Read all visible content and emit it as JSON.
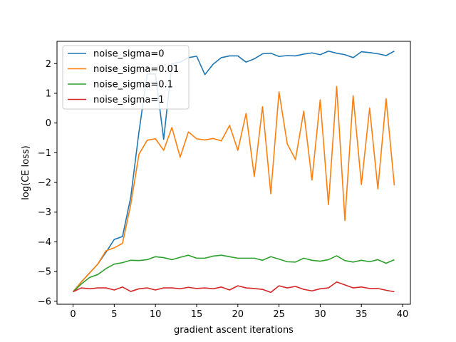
{
  "chart_data": {
    "type": "line",
    "title": "",
    "xlabel": "gradient ascent iterations",
    "ylabel": "log(CE loss)",
    "xlim": [
      -1.95,
      40.95
    ],
    "ylim": [
      -6.1,
      2.75
    ],
    "xticks": [
      0,
      5,
      10,
      15,
      20,
      25,
      30,
      35,
      40
    ],
    "yticks": [
      -6,
      -5,
      -4,
      -3,
      -2,
      -1,
      0,
      1,
      2
    ],
    "grid": false,
    "legend_position": "upper-left",
    "x": [
      0,
      1,
      2,
      3,
      4,
      5,
      6,
      7,
      8,
      9,
      10,
      11,
      12,
      13,
      14,
      15,
      16,
      17,
      18,
      19,
      20,
      21,
      22,
      23,
      24,
      25,
      26,
      27,
      28,
      29,
      30,
      31,
      32,
      33,
      34,
      35,
      36,
      37,
      38,
      39
    ],
    "series": [
      {
        "name": "noise_sigma=0",
        "color": "#1f77b4",
        "values": [
          -5.68,
          -5.35,
          -5.05,
          -4.75,
          -4.35,
          -3.92,
          -3.82,
          -2.5,
          -0.3,
          1.65,
          1.65,
          -0.55,
          2.0,
          2.05,
          2.2,
          2.25,
          1.63,
          1.98,
          2.2,
          2.26,
          2.26,
          2.05,
          2.16,
          2.33,
          2.35,
          2.24,
          2.27,
          2.26,
          2.32,
          2.36,
          2.3,
          2.42,
          2.35,
          2.3,
          2.2,
          2.4,
          2.37,
          2.33,
          2.27,
          2.42
        ]
      },
      {
        "name": "noise_sigma=0.01",
        "color": "#ff7f0e",
        "values": [
          -5.68,
          -5.35,
          -5.05,
          -4.75,
          -4.3,
          -4.2,
          -4.05,
          -2.75,
          -1.05,
          -0.58,
          -0.53,
          -0.92,
          -0.15,
          -1.15,
          -0.3,
          -0.53,
          -0.57,
          -0.52,
          -0.6,
          -0.08,
          -0.92,
          0.32,
          -1.8,
          0.55,
          -2.38,
          1.05,
          -0.7,
          -1.23,
          0.4,
          -1.92,
          0.78,
          -2.75,
          1.23,
          -3.28,
          0.92,
          -2.07,
          0.5,
          -2.22,
          0.82,
          -2.1
        ]
      },
      {
        "name": "noise_sigma=0.1",
        "color": "#2ca02c",
        "values": [
          -5.68,
          -5.42,
          -5.2,
          -5.1,
          -4.9,
          -4.75,
          -4.7,
          -4.62,
          -4.63,
          -4.6,
          -4.5,
          -4.53,
          -4.6,
          -4.52,
          -4.45,
          -4.55,
          -4.55,
          -4.48,
          -4.45,
          -4.5,
          -4.55,
          -4.55,
          -4.55,
          -4.62,
          -4.5,
          -4.58,
          -4.67,
          -4.68,
          -4.55,
          -4.62,
          -4.65,
          -4.6,
          -4.47,
          -4.63,
          -4.68,
          -4.62,
          -4.67,
          -4.6,
          -4.72,
          -4.6
        ]
      },
      {
        "name": "noise_sigma=1",
        "color": "#d62728",
        "values": [
          -5.68,
          -5.55,
          -5.58,
          -5.55,
          -5.55,
          -5.62,
          -5.52,
          -5.67,
          -5.58,
          -5.55,
          -5.62,
          -5.55,
          -5.55,
          -5.58,
          -5.53,
          -5.57,
          -5.55,
          -5.58,
          -5.52,
          -5.62,
          -5.48,
          -5.55,
          -5.57,
          -5.6,
          -5.7,
          -5.48,
          -5.55,
          -5.5,
          -5.6,
          -5.65,
          -5.58,
          -5.55,
          -5.35,
          -5.45,
          -5.55,
          -5.52,
          -5.57,
          -5.57,
          -5.63,
          -5.68
        ]
      }
    ]
  }
}
